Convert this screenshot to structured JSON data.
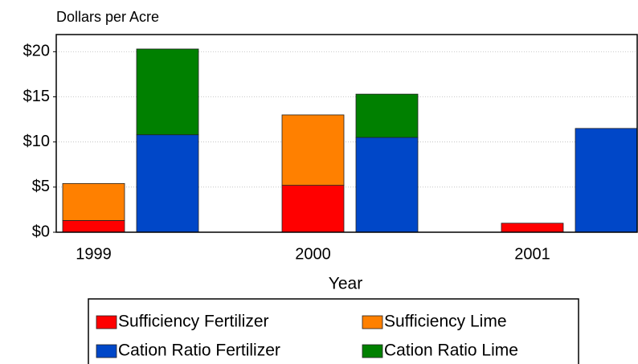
{
  "chart_data": {
    "type": "stacked-bar",
    "y_label": "Dollars per Acre",
    "x_label": "Year",
    "categories": [
      "1999",
      "2000",
      "2001"
    ],
    "series": [
      {
        "name": "Sufficiency Fertilizer",
        "color": "#ff0000",
        "stack": 0,
        "values": [
          1.3,
          5.2,
          1.0
        ]
      },
      {
        "name": "Sufficiency Lime",
        "color": "#ff8000",
        "stack": 0,
        "values": [
          4.1,
          7.8,
          0
        ]
      },
      {
        "name": "Cation Ratio Fertilizer",
        "color": "#0047c8",
        "stack": 1,
        "values": [
          10.8,
          10.5,
          11.5
        ]
      },
      {
        "name": "Cation Ratio Lime",
        "color": "#008000",
        "stack": 1,
        "values": [
          9.5,
          4.8,
          0
        ]
      }
    ],
    "ylim": [
      0,
      21.9
    ],
    "yticks": [
      {
        "value": 0,
        "label": "$0"
      },
      {
        "value": 5,
        "label": "$5"
      },
      {
        "value": 10,
        "label": "$10"
      },
      {
        "value": 15,
        "label": "$15"
      },
      {
        "value": 20,
        "label": "$20"
      }
    ],
    "grid": true
  }
}
